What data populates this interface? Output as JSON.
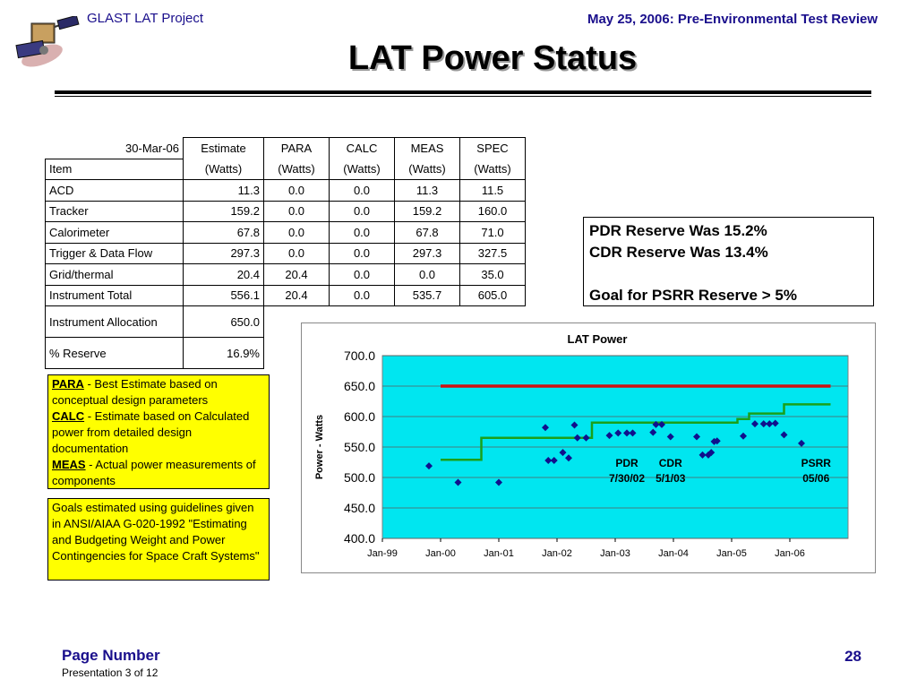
{
  "header": {
    "project": "GLAST LAT Project",
    "event": "May 25, 2006: Pre-Environmental Test Review"
  },
  "title": "LAT Power Status",
  "table": {
    "date": "30-Mar-06",
    "columns": [
      {
        "top": "Estimate",
        "bottom": "(Watts)"
      },
      {
        "top": "PARA",
        "bottom": "(Watts)"
      },
      {
        "top": "CALC",
        "bottom": "(Watts)"
      },
      {
        "top": "MEAS",
        "bottom": "(Watts)"
      },
      {
        "top": "SPEC",
        "bottom": "(Watts)"
      }
    ],
    "item_label": "Item",
    "rows": [
      {
        "item": "ACD",
        "est": "11.3",
        "para": "0.0",
        "calc": "0.0",
        "meas": "11.3",
        "spec": "11.5"
      },
      {
        "item": "Tracker",
        "est": "159.2",
        "para": "0.0",
        "calc": "0.0",
        "meas": "159.2",
        "spec": "160.0"
      },
      {
        "item": "Calorimeter",
        "est": "67.8",
        "para": "0.0",
        "calc": "0.0",
        "meas": "67.8",
        "spec": "71.0"
      },
      {
        "item": "Trigger & Data Flow",
        "est": "297.3",
        "para": "0.0",
        "calc": "0.0",
        "meas": "297.3",
        "spec": "327.5"
      },
      {
        "item": "Grid/thermal",
        "est": "20.4",
        "para": "20.4",
        "calc": "0.0",
        "meas": "0.0",
        "spec": "35.0"
      },
      {
        "item": "Instrument Total",
        "est": "556.1",
        "para": "20.4",
        "calc": "0.0",
        "meas": "535.7",
        "spec": "605.0"
      }
    ],
    "allocation": {
      "label": "Instrument Allocation",
      "value": "650.0"
    },
    "reserve": {
      "label": "% Reserve",
      "value": "16.9%"
    }
  },
  "reserve_box": {
    "line1": "PDR  Reserve Was 15.2%",
    "line2": "CDR  Reserve Was 13.4%",
    "line3": "Goal for PSRR  Reserve >  5%"
  },
  "note1": {
    "para_term": "PARA",
    "para_text": " - Best Estimate based on conceptual design parameters",
    "calc_term": "CALC",
    "calc_text": " - Estimate based on Calculated power from detailed design documentation",
    "meas_term": "MEAS",
    "meas_text": " - Actual power measurements of components"
  },
  "note2": {
    "text": "Goals estimated using guidelines given in ANSI/AIAA G-020-1992 \"Estimating and Budgeting Weight and Power Contingencies for Space Craft Systems\""
  },
  "chart_data": {
    "type": "scatter",
    "title": "LAT Power",
    "ylabel": "Power - Watts",
    "xlabel": "",
    "ylim": [
      400,
      700
    ],
    "y_ticks": [
      "700.0",
      "650.0",
      "600.0",
      "550.0",
      "500.0",
      "450.0",
      "400.0"
    ],
    "x_ticks": [
      "Jan-99",
      "Jan-00",
      "Jan-01",
      "Jan-02",
      "Jan-03",
      "Jan-04",
      "Jan-05",
      "Jan-06"
    ],
    "x_range": [
      1999.0,
      2007.0
    ],
    "grid": "horizontal",
    "background": "#00e6f0",
    "series": [
      {
        "color": "#cc1111",
        "kind": "line",
        "points": [
          [
            2000.0,
            650
          ],
          [
            2006.7,
            650
          ]
        ]
      },
      {
        "color": "#1aa01a",
        "kind": "step",
        "points": [
          [
            2000.0,
            529
          ],
          [
            2000.7,
            529
          ],
          [
            2000.7,
            565
          ],
          [
            2002.6,
            565
          ],
          [
            2002.6,
            590
          ],
          [
            2005.1,
            590
          ],
          [
            2005.1,
            596
          ],
          [
            2005.3,
            596
          ],
          [
            2005.3,
            605
          ],
          [
            2005.9,
            605
          ],
          [
            2005.9,
            620
          ],
          [
            2006.7,
            620
          ]
        ]
      },
      {
        "color": "#10108c",
        "kind": "points",
        "points": [
          [
            1999.8,
            519
          ],
          [
            2000.3,
            492
          ],
          [
            2001.0,
            492
          ],
          [
            2001.8,
            582
          ],
          [
            2001.85,
            528
          ],
          [
            2001.95,
            528
          ],
          [
            2002.1,
            541
          ],
          [
            2002.2,
            532
          ],
          [
            2002.3,
            586
          ],
          [
            2002.35,
            565
          ],
          [
            2002.5,
            565
          ],
          [
            2002.9,
            569
          ],
          [
            2003.05,
            573
          ],
          [
            2003.2,
            573
          ],
          [
            2003.3,
            573
          ],
          [
            2003.65,
            574
          ],
          [
            2003.7,
            587
          ],
          [
            2003.8,
            587
          ],
          [
            2003.95,
            567
          ],
          [
            2004.4,
            567
          ],
          [
            2004.5,
            537
          ],
          [
            2004.6,
            537
          ],
          [
            2004.65,
            541
          ],
          [
            2004.7,
            559
          ],
          [
            2004.75,
            560
          ],
          [
            2005.2,
            568
          ],
          [
            2005.4,
            588
          ],
          [
            2005.55,
            588
          ],
          [
            2005.65,
            588
          ],
          [
            2005.75,
            589
          ],
          [
            2005.9,
            570
          ],
          [
            2006.2,
            556
          ]
        ]
      }
    ],
    "annotations": [
      {
        "text": "PDR",
        "sub": "7/30/02"
      },
      {
        "text": "CDR",
        "sub": "5/1/03"
      },
      {
        "text": "PSRR",
        "sub": "05/06"
      }
    ]
  },
  "footer": {
    "page_label": "Page Number",
    "presentation": "Presentation 3 of 12",
    "page_number": "28"
  }
}
